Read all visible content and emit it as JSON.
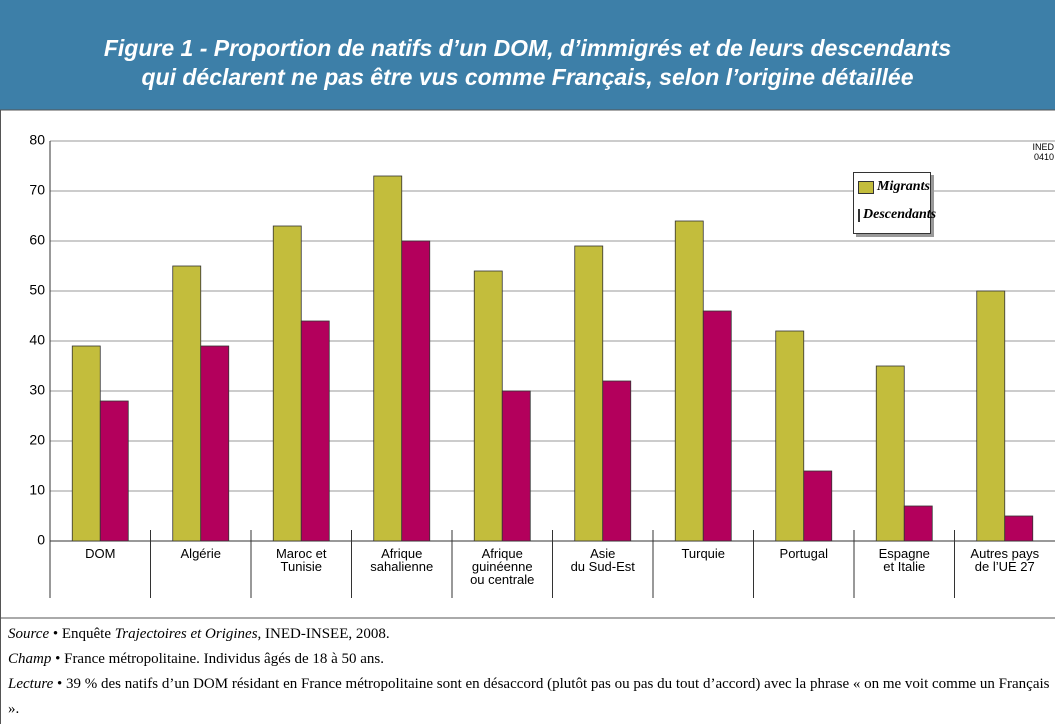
{
  "chart_data": {
    "type": "bar",
    "title": "Figure 1 - Proportion de natifs d’un DOM, d’immigrés et de leurs descendants\nqui déclarent ne pas être vus comme Français, selon l’origine détaillée",
    "annotation": "INED\n0410",
    "categories": [
      "DOM",
      "Algérie",
      "Maroc et\nTunisie",
      "Afrique\nsahalienne",
      "Afrique\nguinéenne\nou centrale",
      "Asie\ndu Sud-Est",
      "Turquie",
      "Portugal",
      "Espagne\net Italie",
      "Autres pays\nde l’UE 27"
    ],
    "series": [
      {
        "name": "Migrants",
        "color": "#c3bd3c",
        "values": [
          39,
          55,
          63,
          73,
          54,
          59,
          64,
          42,
          35,
          50
        ]
      },
      {
        "name": "Descendants",
        "color": "#b3005c",
        "values": [
          28,
          39,
          44,
          60,
          30,
          32,
          46,
          14,
          7,
          5
        ]
      }
    ],
    "ylim": [
      0,
      80
    ],
    "yticks": [
      0,
      10,
      20,
      30,
      40,
      50,
      60,
      70,
      80
    ],
    "grid": true,
    "legend": "upper right"
  },
  "notes": [
    {
      "label": "Source",
      "parts": [
        " • Enquête ",
        "Trajectoires et Origines",
        ", INED-INSEE, 2008."
      ]
    },
    {
      "label": "Champ",
      "parts": [
        " • France métropolitaine. Individus âgés de 18 à 50 ans."
      ]
    },
    {
      "label": "Lecture",
      "parts": [
        " • 39 % des natifs d’un DOM résidant en France métropolitaine sont en désaccord (plutôt pas ou pas du tout d’accord) avec la phrase « on me voit comme un Français »."
      ]
    }
  ]
}
